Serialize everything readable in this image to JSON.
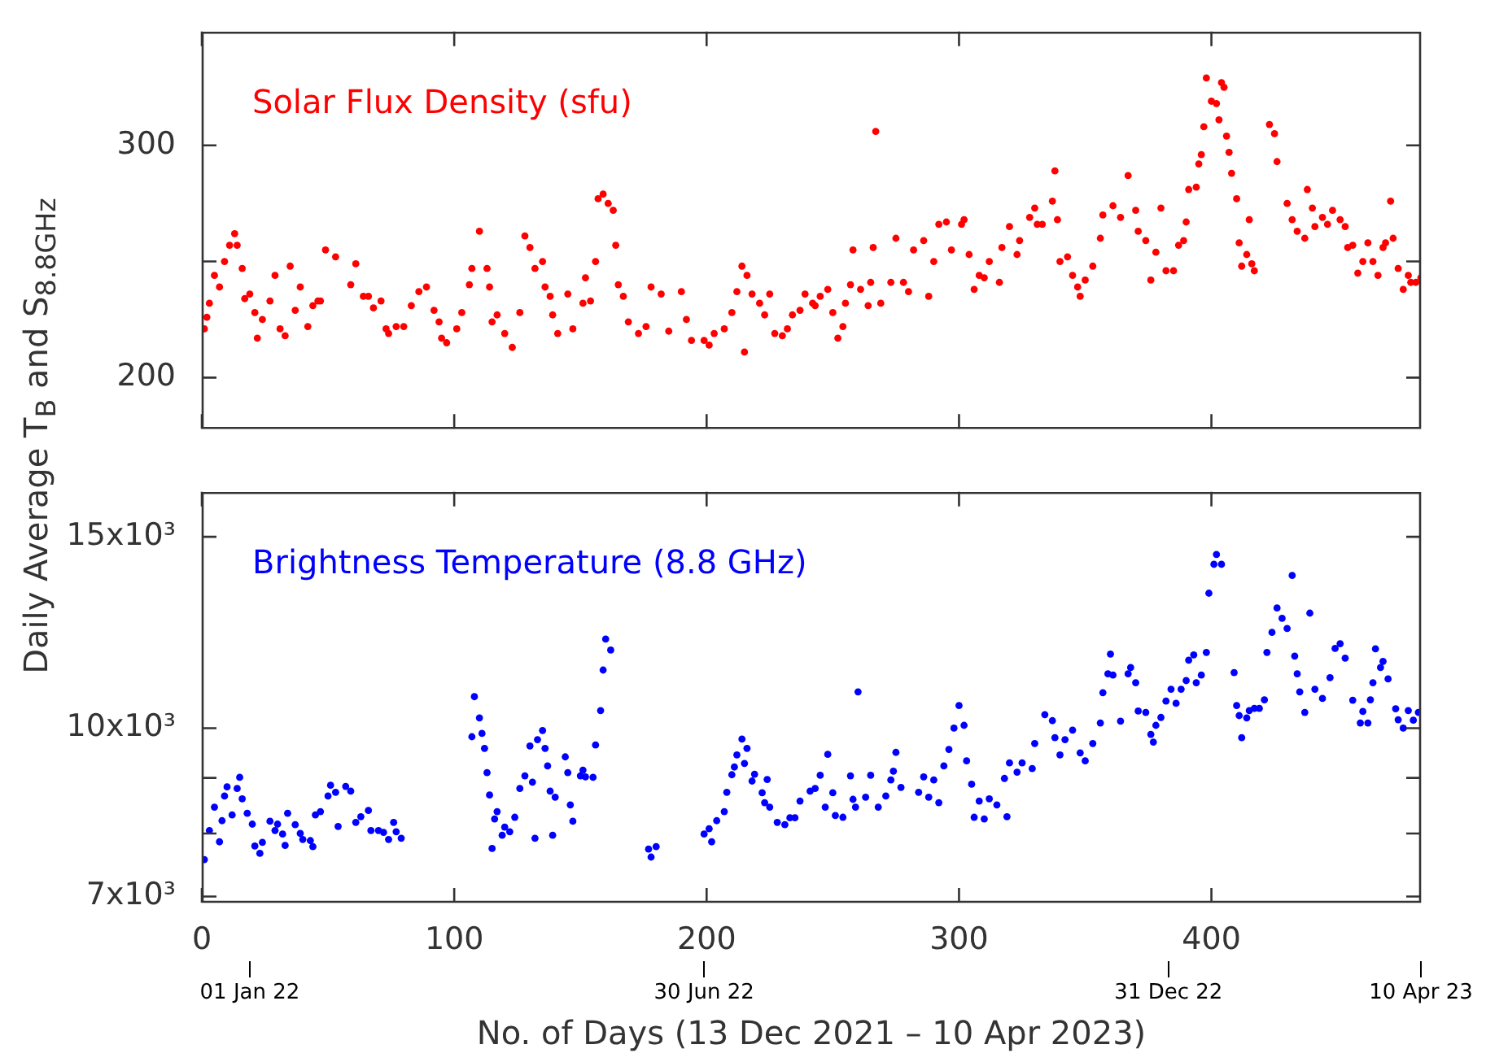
{
  "chart_data": [
    {
      "type": "scatter",
      "ylabel": "Daily Average T$_{B}$ and S$_{8.8GHz}$",
      "marker": "circle",
      "tick_labels": "y",
      "xlim": [
        0,
        483
      ],
      "xticks": [
        0,
        100,
        200,
        300,
        400
      ],
      "ylim": [
        178,
        349
      ],
      "yticks": [
        200,
        {
          "value": 250,
          "label": null
        },
        300
      ],
      "series": [
        {
          "name": "Solar Flux Density (sfu)",
          "color": "#ff0000",
          "x": [
            1,
            2,
            3,
            5,
            7,
            9,
            11,
            13,
            14,
            16,
            17,
            19,
            21,
            22,
            24,
            27,
            29,
            31,
            33,
            35,
            37,
            39,
            42,
            44,
            46,
            47,
            49,
            53,
            59,
            61,
            64,
            66,
            68,
            71,
            73,
            74,
            77,
            80,
            83,
            86,
            89,
            92,
            94,
            95,
            97,
            101,
            103,
            106,
            107,
            110,
            113,
            114,
            115,
            117,
            120,
            123,
            126,
            128,
            130,
            132,
            135,
            136,
            138,
            139,
            141,
            145,
            147,
            151,
            152,
            154,
            156,
            157,
            159,
            161,
            163,
            164,
            165,
            167,
            169,
            173,
            176,
            178,
            182,
            185,
            190,
            192,
            194,
            199,
            201,
            203,
            207,
            210,
            212,
            214,
            215,
            216,
            218,
            221,
            223,
            225,
            227,
            230,
            232,
            234,
            237,
            239,
            242,
            243,
            245,
            248,
            250,
            252,
            254,
            255,
            257,
            258,
            261,
            264,
            265,
            266,
            267,
            269,
            273,
            275,
            278,
            280,
            282,
            286,
            288,
            290,
            292,
            295,
            297,
            301,
            302,
            304,
            306,
            308,
            310,
            312,
            316,
            317,
            320,
            323,
            324,
            328,
            330,
            331,
            333,
            337,
            338,
            339,
            340,
            343,
            345,
            347,
            348,
            350,
            353,
            356,
            357,
            361,
            364,
            367,
            370,
            371,
            374,
            376,
            378,
            380,
            382,
            385,
            387,
            389,
            390,
            391,
            394,
            395,
            396,
            397,
            398,
            400,
            402,
            403,
            404,
            405,
            406,
            407,
            408,
            410,
            411,
            412,
            414,
            415,
            416,
            417,
            423,
            425,
            426,
            430,
            432,
            434,
            437,
            438,
            440,
            441,
            444,
            446,
            448,
            451,
            453,
            454,
            456,
            458,
            460,
            462,
            464,
            466,
            468,
            469,
            471,
            472,
            474,
            476,
            478,
            479,
            481,
            483
          ],
          "values": [
            221,
            226,
            232,
            244,
            239,
            250,
            257,
            262,
            257,
            247,
            234,
            236,
            228,
            217,
            225,
            233,
            244,
            221,
            218,
            248,
            229,
            239,
            222,
            231,
            233,
            233,
            255,
            252,
            240,
            249,
            235,
            235,
            230,
            233,
            221,
            219,
            222,
            222,
            231,
            237,
            239,
            229,
            224,
            217,
            215,
            221,
            228,
            240,
            247,
            263,
            247,
            239,
            224,
            227,
            219,
            213,
            228,
            261,
            256,
            247,
            250,
            239,
            235,
            227,
            219,
            236,
            221,
            232,
            243,
            233,
            250,
            277,
            279,
            275,
            272,
            257,
            240,
            235,
            224,
            219,
            222,
            239,
            236,
            220,
            237,
            225,
            216,
            216,
            214,
            219,
            221,
            228,
            237,
            248,
            211,
            244,
            236,
            232,
            227,
            236,
            219,
            218,
            221,
            227,
            229,
            236,
            232,
            231,
            235,
            238,
            228,
            217,
            222,
            232,
            240,
            255,
            238,
            231,
            241,
            256,
            306,
            232,
            241,
            260,
            241,
            237,
            255,
            259,
            235,
            250,
            266,
            267,
            255,
            266,
            268,
            253,
            238,
            244,
            243,
            250,
            241,
            256,
            265,
            253,
            259,
            269,
            273,
            266,
            266,
            276,
            289,
            268,
            250,
            252,
            244,
            239,
            235,
            242,
            248,
            260,
            270,
            274,
            269,
            287,
            272,
            263,
            259,
            242,
            254,
            273,
            246,
            246,
            257,
            259,
            267,
            281,
            282,
            292,
            296,
            308,
            329,
            319,
            318,
            311,
            327,
            325,
            304,
            297,
            288,
            277,
            258,
            248,
            253,
            268,
            249,
            246,
            309,
            305,
            293,
            275,
            268,
            263,
            260,
            281,
            273,
            265,
            269,
            266,
            272,
            268,
            265,
            256,
            257,
            245,
            250,
            258,
            250,
            244,
            256,
            258,
            276,
            260,
            247,
            238,
            244,
            241,
            241,
            243
          ]
        }
      ]
    },
    {
      "type": "scatter",
      "xlabel": "No. of Days (13 Dec 2021 – 10 Apr 2023)",
      "marker": "circle",
      "log": "y",
      "xlim": [
        0,
        483
      ],
      "xticks": [
        0,
        100,
        200,
        300,
        400
      ],
      "x2lim": [
        "2021-12-13",
        "2023-04-10"
      ],
      "x2ticks": [
        {
          "value": "2022-01-01",
          "label": "01 Jan 22"
        },
        {
          "value": "2022-06-30",
          "label": "30 Jun 22"
        },
        {
          "value": "2022-12-31",
          "label": "31 Dec 22"
        },
        {
          "value": "2023-04-10",
          "label": "10 Apr 23"
        }
      ],
      "ylim": [
        6910,
        16500
      ],
      "yticks": [
        {
          "value": 7000,
          "label": "7x10³"
        },
        {
          "value": 8000,
          "label": null
        },
        {
          "value": 9000,
          "label": null
        },
        {
          "value": 10000,
          "label": "10x10³"
        },
        {
          "value": 15000,
          "label": "15x10³"
        }
      ],
      "series": [
        {
          "name": "Brightness Temperature (8.8 GHz)",
          "color": "#0000ff",
          "x": [
            1,
            3,
            5,
            7,
            8,
            9,
            10,
            12,
            14,
            15,
            16,
            18,
            20,
            21,
            23,
            24,
            27,
            29,
            30,
            32,
            33,
            34,
            37,
            39,
            40,
            43,
            44,
            45,
            47,
            50,
            51,
            53,
            54,
            57,
            59,
            61,
            63,
            66,
            67,
            70,
            72,
            74,
            76,
            77,
            79,
            107,
            108,
            110,
            111,
            112,
            113,
            114,
            115,
            116,
            117,
            119,
            120,
            122,
            124,
            126,
            128,
            130,
            131,
            132,
            133,
            135,
            136,
            137,
            138,
            139,
            140,
            144,
            145,
            146,
            147,
            150,
            151,
            152,
            155,
            156,
            158,
            159,
            160,
            162,
            177,
            178,
            180,
            199,
            201,
            202,
            204,
            207,
            208,
            210,
            211,
            212,
            214,
            215,
            216,
            218,
            219,
            222,
            223,
            224,
            225,
            228,
            231,
            233,
            235,
            237,
            241,
            243,
            245,
            247,
            248,
            250,
            251,
            254,
            257,
            258,
            259,
            260,
            263,
            265,
            268,
            271,
            273,
            274,
            275,
            277,
            284,
            286,
            288,
            290,
            292,
            294,
            296,
            298,
            300,
            302,
            303,
            305,
            306,
            308,
            310,
            312,
            315,
            318,
            319,
            320,
            323,
            325,
            329,
            330,
            334,
            337,
            338,
            340,
            342,
            345,
            348,
            350,
            353,
            356,
            357,
            359,
            360,
            361,
            364,
            367,
            368,
            370,
            371,
            374,
            376,
            377,
            378,
            380,
            382,
            384,
            386,
            388,
            390,
            391,
            393,
            394,
            396,
            398,
            399,
            401,
            402,
            404,
            409,
            410,
            411,
            412,
            414,
            415,
            417,
            419,
            421,
            422,
            424,
            426,
            428,
            430,
            432,
            433,
            434,
            435,
            437,
            439,
            441,
            444,
            447,
            449,
            451,
            453,
            456,
            459,
            460,
            462,
            463,
            464,
            465,
            467,
            468,
            470,
            473,
            474,
            476,
            478,
            480,
            482
          ],
          "values": [
            7570,
            8050,
            8460,
            7860,
            8220,
            8660,
            8830,
            8320,
            8800,
            9010,
            8610,
            8350,
            8160,
            7790,
            7670,
            7850,
            8210,
            8050,
            8160,
            7990,
            7800,
            8350,
            8150,
            8000,
            7900,
            7880,
            7780,
            8320,
            8380,
            8660,
            8860,
            8730,
            8120,
            8840,
            8750,
            8190,
            8290,
            8400,
            8050,
            8050,
            8020,
            7900,
            8190,
            8030,
            7920,
            9820,
            10690,
            10220,
            9890,
            9580,
            9100,
            8680,
            7750,
            8250,
            8380,
            7970,
            8110,
            8030,
            8280,
            8800,
            9040,
            9630,
            8920,
            7920,
            9760,
            9950,
            9580,
            9230,
            8750,
            7970,
            8640,
            9410,
            9100,
            8500,
            8210,
            9040,
            9150,
            9020,
            9010,
            9650,
            10380,
            11310,
            12080,
            11800,
            7740,
            7610,
            7780,
            7990,
            8080,
            7860,
            8220,
            8380,
            8730,
            9060,
            9210,
            9450,
            9770,
            9280,
            9580,
            8940,
            9070,
            8720,
            8540,
            8970,
            8460,
            8190,
            8150,
            8270,
            8270,
            8570,
            8750,
            8800,
            9050,
            8460,
            9460,
            8720,
            8310,
            8280,
            9040,
            8600,
            8460,
            10800,
            8640,
            9050,
            8460,
            8660,
            8960,
            9130,
            9500,
            8820,
            8730,
            9020,
            8640,
            8960,
            8540,
            9230,
            9560,
            10000,
            10490,
            10060,
            9330,
            8880,
            8280,
            8570,
            8250,
            8610,
            8500,
            8990,
            8290,
            9290,
            9110,
            9290,
            9180,
            9680,
            10290,
            10160,
            9800,
            9450,
            9760,
            9960,
            9490,
            9330,
            9680,
            10110,
            10780,
            11220,
            11700,
            11190,
            10150,
            11220,
            11370,
            11010,
            10370,
            10340,
            9870,
            9710,
            10060,
            10230,
            10590,
            10860,
            10540,
            10860,
            11060,
            11550,
            11680,
            11010,
            11190,
            11740,
            13310,
            14150,
            14450,
            14150,
            11250,
            10490,
            10270,
            9800,
            10220,
            10380,
            10430,
            10430,
            10620,
            11740,
            12250,
            12900,
            12620,
            12350,
            13820,
            11650,
            11220,
            10800,
            10340,
            12760,
            10860,
            10650,
            11130,
            11840,
            11960,
            11600,
            10610,
            10110,
            10360,
            10110,
            10620,
            11010,
            11830,
            11370,
            11520,
            11100,
            10420,
            10180,
            10000,
            10380,
            10170,
            10340
          ]
        }
      ]
    }
  ]
}
